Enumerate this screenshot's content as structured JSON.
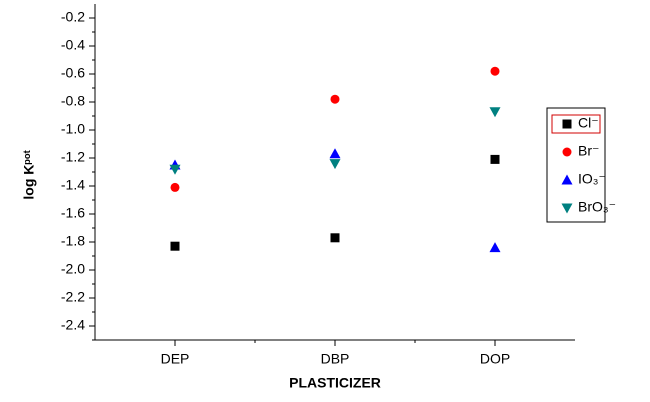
{
  "chart_data": {
    "type": "scatter",
    "x_label": "PLASTICIZER",
    "y_label": "log Kᵖᵒᵗ",
    "categories": [
      "DEP",
      "DBP",
      "DOP"
    ],
    "series": [
      {
        "name": "Cl⁻",
        "color": "#000000",
        "marker": "square",
        "values": [
          -1.83,
          -1.77,
          -1.21
        ]
      },
      {
        "name": "Br⁻",
        "color": "#ff0000",
        "marker": "circle",
        "values": [
          -1.41,
          -0.78,
          -0.58
        ]
      },
      {
        "name": "IO₃⁻",
        "color": "#0000ff",
        "marker": "triangle-up",
        "values": [
          -1.25,
          -1.17,
          -1.84
        ]
      },
      {
        "name": "BrO₃⁻",
        "color": "#008080",
        "marker": "triangle-down",
        "values": [
          -1.28,
          -1.24,
          -0.87
        ]
      }
    ],
    "ylim": [
      -2.5,
      -0.1
    ],
    "yticks": [
      -0.2,
      -0.4,
      -0.6,
      -0.8,
      {
        "value": -1,
        "label": "-1.0"
      },
      -1.2,
      -1.4,
      -1.6,
      -1.8,
      {
        "value": -2,
        "label": "-2.0"
      },
      -2.2,
      -2.4
    ],
    "legend": "right"
  }
}
